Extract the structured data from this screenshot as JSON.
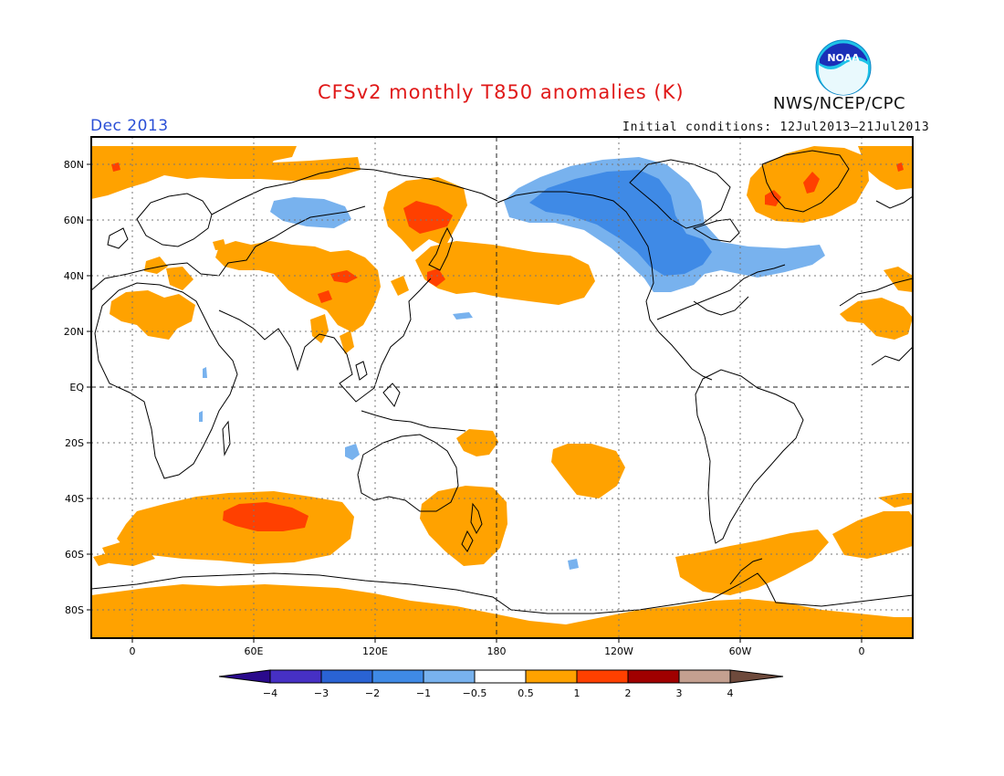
{
  "header": {
    "title": "CFSv2 monthly T850 anomalies (K)",
    "organization": "NWS/NCEP/CPC",
    "valid_month": "Dec 2013",
    "initial_conditions": "Initial conditions: 12Jul2013–21Jul2013",
    "logo_text": "NOAA"
  },
  "map": {
    "lat_labels": [
      "80N",
      "60N",
      "40N",
      "20N",
      "EQ",
      "20S",
      "40S",
      "60S",
      "80S"
    ],
    "lon_labels": [
      "0",
      "60E",
      "120E",
      "180",
      "120W",
      "60W",
      "0"
    ]
  },
  "colorbar": {
    "labels": [
      "−4",
      "−3",
      "−2",
      "−1",
      "−0.5",
      "0.5",
      "1",
      "2",
      "3",
      "4"
    ],
    "colors": [
      "#2a0a8c",
      "#4630c4",
      "#2a63d4",
      "#3f8ae6",
      "#78b2ee",
      "#ffffff",
      "#ffa200",
      "#ff4000",
      "#a00000",
      "#c4a090",
      "#6e4a3c"
    ]
  },
  "colors": {
    "positive_weak": "#ffa200",
    "positive_moderate": "#ff4000",
    "negative_weak": "#78b2ee",
    "negative_moderate": "#3f8ae6",
    "title": "#e01818",
    "month": "#2a4fd6"
  }
}
